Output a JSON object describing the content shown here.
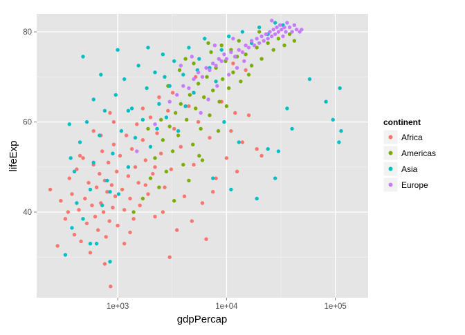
{
  "chart_data": {
    "type": "scatter",
    "title": "",
    "xlabel": "gdpPercap",
    "ylabel": "lifeExp",
    "x_scale": "log10",
    "xlim": [
      180,
      200000
    ],
    "ylim": [
      21,
      84
    ],
    "x_ticks": [
      {
        "value": 1000,
        "label": "1e+03"
      },
      {
        "value": 10000,
        "label": "1e+04"
      },
      {
        "value": 100000,
        "label": "1e+05"
      }
    ],
    "y_ticks": [
      {
        "value": 40,
        "label": "40"
      },
      {
        "value": 60,
        "label": "60"
      },
      {
        "value": 80,
        "label": "80"
      }
    ],
    "grid": true,
    "legend": {
      "title": "continent",
      "position": "right",
      "entries": [
        {
          "name": "Africa",
          "color": "#F8766D"
        },
        {
          "name": "Americas",
          "color": "#7CAE00"
        },
        {
          "name": "Asia",
          "color": "#00BFC4"
        },
        {
          "name": "Europe",
          "color": "#C77CFF"
        }
      ]
    },
    "series": [
      {
        "name": "Africa",
        "color": "#F8766D",
        "points": [
          [
            240,
            45.0
          ],
          [
            280,
            32.5
          ],
          [
            300,
            42.5
          ],
          [
            330,
            38.5
          ],
          [
            360,
            47.5
          ],
          [
            380,
            44.0
          ],
          [
            400,
            35.0
          ],
          [
            420,
            49.5
          ],
          [
            440,
            40.5
          ],
          [
            460,
            33.5
          ],
          [
            480,
            52.0
          ],
          [
            500,
            43.0
          ],
          [
            520,
            37.5
          ],
          [
            540,
            46.5
          ],
          [
            560,
            31.0
          ],
          [
            580,
            41.5
          ],
          [
            600,
            50.5
          ],
          [
            620,
            39.0
          ],
          [
            640,
            45.5
          ],
          [
            660,
            36.0
          ],
          [
            680,
            48.5
          ],
          [
            700,
            42.0
          ],
          [
            720,
            53.5
          ],
          [
            740,
            40.0
          ],
          [
            760,
            47.0
          ],
          [
            780,
            34.5
          ],
          [
            800,
            44.5
          ],
          [
            820,
            51.0
          ],
          [
            840,
            38.0
          ],
          [
            860,
            23.5
          ],
          [
            880,
            46.0
          ],
          [
            900,
            41.0
          ],
          [
            920,
            55.0
          ],
          [
            950,
            43.5
          ],
          [
            980,
            49.0
          ],
          [
            1000,
            37.0
          ],
          [
            1050,
            52.5
          ],
          [
            1100,
            45.0
          ],
          [
            1150,
            40.5
          ],
          [
            1200,
            57.0
          ],
          [
            1250,
            48.0
          ],
          [
            1300,
            43.0
          ],
          [
            1350,
            54.0
          ],
          [
            1400,
            38.5
          ],
          [
            1450,
            50.0
          ],
          [
            1500,
            59.5
          ],
          [
            1550,
            46.5
          ],
          [
            1600,
            41.5
          ],
          [
            1700,
            56.0
          ],
          [
            1800,
            51.5
          ],
          [
            1900,
            44.0
          ],
          [
            2000,
            61.0
          ],
          [
            2100,
            48.5
          ],
          [
            2200,
            39.0
          ],
          [
            2300,
            57.5
          ],
          [
            2500,
            53.0
          ],
          [
            2700,
            45.5
          ],
          [
            2900,
            62.5
          ],
          [
            3100,
            49.5
          ],
          [
            3300,
            58.5
          ],
          [
            3500,
            36.0
          ],
          [
            3800,
            54.5
          ],
          [
            4100,
            43.5
          ],
          [
            4500,
            63.5
          ],
          [
            5000,
            50.5
          ],
          [
            5500,
            60.0
          ],
          [
            6000,
            42.0
          ],
          [
            7000,
            56.5
          ],
          [
            8000,
            47.5
          ],
          [
            9000,
            64.5
          ],
          [
            10000,
            52.0
          ],
          [
            11000,
            58.0
          ],
          [
            12500,
            49.0
          ],
          [
            14000,
            55.5
          ],
          [
            16000,
            61.5
          ],
          [
            19000,
            54.0
          ],
          [
            21000,
            52.5
          ],
          [
            3000,
            30.0
          ],
          [
            6500,
            34.0
          ],
          [
            12000,
            62.0
          ],
          [
            1300,
            35.5
          ],
          [
            760,
            28.5
          ],
          [
            1800,
            46.0
          ],
          [
            2600,
            40.0
          ],
          [
            4800,
            38.0
          ],
          [
            3200,
            66.5
          ],
          [
            7500,
            44.5
          ],
          [
            15000,
            71.5
          ],
          [
            11500,
            73.0
          ],
          [
            5200,
            70.0
          ],
          [
            920,
            60.0
          ],
          [
            1700,
            63.0
          ],
          [
            2400,
            65.5
          ],
          [
            600,
            58.0
          ],
          [
            450,
            52.5
          ],
          [
            350,
            40.0
          ],
          [
            1150,
            33.0
          ],
          [
            2200,
            50.0
          ],
          [
            700,
            57.0
          ],
          [
            850,
            62.0
          ]
        ]
      },
      {
        "name": "Americas",
        "color": "#7CAE00",
        "points": [
          [
            1400,
            40.0
          ],
          [
            1700,
            43.0
          ],
          [
            2000,
            47.5
          ],
          [
            2200,
            52.0
          ],
          [
            2400,
            45.5
          ],
          [
            2600,
            56.0
          ],
          [
            2800,
            49.0
          ],
          [
            3000,
            59.0
          ],
          [
            3200,
            53.5
          ],
          [
            3400,
            62.0
          ],
          [
            3600,
            57.0
          ],
          [
            3800,
            64.0
          ],
          [
            4000,
            50.5
          ],
          [
            4300,
            60.5
          ],
          [
            4600,
            66.0
          ],
          [
            4900,
            55.0
          ],
          [
            5200,
            63.0
          ],
          [
            5500,
            68.5
          ],
          [
            5800,
            58.5
          ],
          [
            6200,
            65.5
          ],
          [
            6600,
            70.0
          ],
          [
            7000,
            61.5
          ],
          [
            7500,
            67.0
          ],
          [
            8000,
            72.0
          ],
          [
            8600,
            64.5
          ],
          [
            9200,
            69.5
          ],
          [
            9800,
            73.5
          ],
          [
            10500,
            67.5
          ],
          [
            11500,
            71.0
          ],
          [
            12500,
            74.5
          ],
          [
            13500,
            69.0
          ],
          [
            15000,
            75.0
          ],
          [
            17000,
            72.5
          ],
          [
            19000,
            76.5
          ],
          [
            21000,
            74.0
          ],
          [
            24000,
            77.5
          ],
          [
            27000,
            76.0
          ],
          [
            30000,
            78.5
          ],
          [
            34000,
            77.0
          ],
          [
            38000,
            79.5
          ],
          [
            42000,
            78.0
          ],
          [
            3300,
            42.5
          ],
          [
            4500,
            47.0
          ],
          [
            6000,
            51.5
          ],
          [
            2900,
            68.0
          ],
          [
            5000,
            73.0
          ],
          [
            7200,
            75.5
          ],
          [
            9000,
            77.0
          ],
          [
            11000,
            76.0
          ],
          [
            13000,
            78.0
          ],
          [
            3700,
            71.5
          ],
          [
            4200,
            74.0
          ],
          [
            2500,
            60.5
          ],
          [
            1900,
            58.5
          ],
          [
            8400,
            58.0
          ],
          [
            10000,
            63.5
          ],
          [
            16000,
            70.5
          ],
          [
            20000,
            80.0
          ],
          [
            6800,
            77.5
          ],
          [
            5600,
            52.5
          ]
        ]
      },
      {
        "name": "Asia",
        "color": "#00BFC4",
        "points": [
          [
            330,
            30.5
          ],
          [
            360,
            59.5
          ],
          [
            380,
            36.5
          ],
          [
            400,
            49.0
          ],
          [
            420,
            42.0
          ],
          [
            450,
            55.5
          ],
          [
            480,
            38.5
          ],
          [
            520,
            60.0
          ],
          [
            560,
            45.0
          ],
          [
            600,
            51.0
          ],
          [
            640,
            33.0
          ],
          [
            680,
            57.0
          ],
          [
            720,
            41.5
          ],
          [
            760,
            62.5
          ],
          [
            800,
            47.0
          ],
          [
            850,
            29.0
          ],
          [
            900,
            53.0
          ],
          [
            960,
            66.0
          ],
          [
            1020,
            44.0
          ],
          [
            1080,
            58.0
          ],
          [
            1150,
            69.5
          ],
          [
            1250,
            50.0
          ],
          [
            1350,
            63.0
          ],
          [
            1450,
            56.5
          ],
          [
            1550,
            72.5
          ],
          [
            1700,
            60.5
          ],
          [
            1850,
            67.5
          ],
          [
            2000,
            54.5
          ],
          [
            2200,
            71.0
          ],
          [
            2400,
            64.0
          ],
          [
            2600,
            75.0
          ],
          [
            2800,
            61.0
          ],
          [
            3000,
            68.0
          ],
          [
            3300,
            73.5
          ],
          [
            3600,
            58.0
          ],
          [
            4000,
            70.5
          ],
          [
            4500,
            76.5
          ],
          [
            5000,
            66.5
          ],
          [
            5600,
            74.0
          ],
          [
            6300,
            78.5
          ],
          [
            7000,
            72.0
          ],
          [
            8000,
            69.0
          ],
          [
            9000,
            76.0
          ],
          [
            10500,
            79.0
          ],
          [
            12000,
            74.5
          ],
          [
            14000,
            80.0
          ],
          [
            17000,
            77.5
          ],
          [
            20000,
            81.0
          ],
          [
            24000,
            79.5
          ],
          [
            28000,
            82.0
          ],
          [
            33000,
            81.5
          ],
          [
            36000,
            63.0
          ],
          [
            40000,
            58.5
          ],
          [
            58000,
            69.5
          ],
          [
            82000,
            64.5
          ],
          [
            95000,
            60.5
          ],
          [
            108000,
            55.5
          ],
          [
            110000,
            67.5
          ],
          [
            113000,
            58.0
          ],
          [
            28000,
            47.5
          ],
          [
            19000,
            43.0
          ],
          [
            11000,
            45.0
          ],
          [
            7500,
            47.5
          ],
          [
            13000,
            55.5
          ],
          [
            24000,
            54.0
          ],
          [
            30000,
            53.5
          ],
          [
            700,
            70.5
          ],
          [
            600,
            65.0
          ],
          [
            480,
            74.5
          ],
          [
            1000,
            76.0
          ],
          [
            370,
            52.0
          ],
          [
            560,
            33.0
          ],
          [
            850,
            44.5
          ],
          [
            1250,
            62.5
          ],
          [
            1900,
            76.5
          ],
          [
            2300,
            58.5
          ],
          [
            2700,
            70.0
          ],
          [
            4200,
            63.5
          ],
          [
            5400,
            71.5
          ],
          [
            9500,
            60.0
          ]
        ]
      },
      {
        "name": "Europe",
        "color": "#C77CFF",
        "points": [
          [
            1500,
            53.5
          ],
          [
            2200,
            59.5
          ],
          [
            3000,
            64.5
          ],
          [
            3500,
            66.0
          ],
          [
            4000,
            68.0
          ],
          [
            4500,
            67.5
          ],
          [
            5000,
            69.5
          ],
          [
            5500,
            71.0
          ],
          [
            6000,
            70.0
          ],
          [
            6500,
            72.0
          ],
          [
            7000,
            71.5
          ],
          [
            7500,
            73.0
          ],
          [
            8000,
            72.5
          ],
          [
            8500,
            74.0
          ],
          [
            9000,
            73.5
          ],
          [
            9500,
            75.0
          ],
          [
            10000,
            74.0
          ],
          [
            11000,
            75.5
          ],
          [
            12000,
            74.5
          ],
          [
            13000,
            76.0
          ],
          [
            14000,
            75.5
          ],
          [
            15000,
            77.0
          ],
          [
            16000,
            76.5
          ],
          [
            17000,
            78.0
          ],
          [
            18000,
            77.0
          ],
          [
            19000,
            78.5
          ],
          [
            20000,
            77.5
          ],
          [
            21000,
            79.0
          ],
          [
            22000,
            78.0
          ],
          [
            23000,
            79.5
          ],
          [
            24000,
            78.5
          ],
          [
            25000,
            80.0
          ],
          [
            26000,
            79.0
          ],
          [
            27000,
            80.5
          ],
          [
            28000,
            79.5
          ],
          [
            29000,
            81.0
          ],
          [
            30000,
            80.0
          ],
          [
            31000,
            81.5
          ],
          [
            32000,
            80.5
          ],
          [
            33000,
            79.0
          ],
          [
            34000,
            81.0
          ],
          [
            35000,
            80.0
          ],
          [
            36000,
            82.0
          ],
          [
            38000,
            81.0
          ],
          [
            40000,
            80.0
          ],
          [
            42000,
            81.5
          ],
          [
            44000,
            80.5
          ],
          [
            47000,
            80.0
          ],
          [
            49000,
            80.5
          ],
          [
            26000,
            82.5
          ],
          [
            5800,
            62.0
          ],
          [
            6800,
            65.0
          ],
          [
            8200,
            68.0
          ],
          [
            10500,
            70.5
          ],
          [
            12500,
            72.0
          ],
          [
            14500,
            73.5
          ],
          [
            3800,
            72.5
          ],
          [
            4800,
            74.5
          ],
          [
            7800,
            77.0
          ],
          [
            11500,
            78.5
          ]
        ]
      }
    ]
  }
}
